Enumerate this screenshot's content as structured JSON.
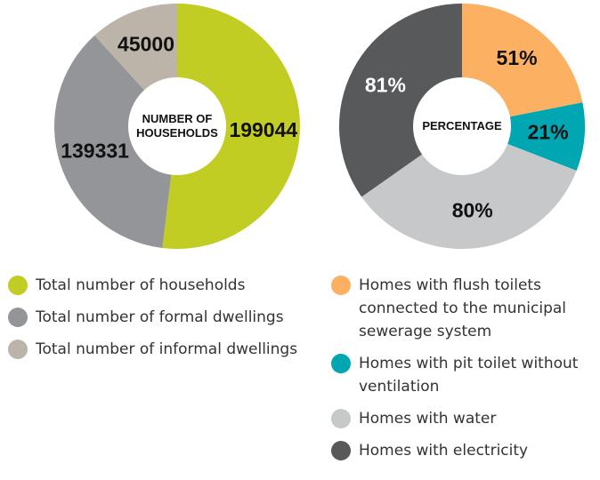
{
  "chart_data": [
    {
      "type": "pie",
      "center_label": "NUMBER OF HOUSEHOLDS",
      "categories": [
        "Total number of households",
        "Total number of formal dwellings",
        "Total number of informal dwellings"
      ],
      "values": [
        199044,
        139331,
        45000
      ],
      "colors": [
        "#c2cd23",
        "#939598",
        "#bcb4a9"
      ]
    },
    {
      "type": "pie",
      "center_label": "PERCENTAGE",
      "categories": [
        "Homes with flush toilets connected to the municipal sewerage system",
        "Homes with pit toilet without ventilation",
        "Homes with water",
        "Homes with electricity"
      ],
      "values": [
        51,
        21,
        80,
        81
      ],
      "value_labels": [
        "51%",
        "21%",
        "80%",
        "81%"
      ],
      "colors": [
        "#fbb062",
        "#00a6b2",
        "#c7c8ca",
        "#58595b"
      ]
    }
  ]
}
